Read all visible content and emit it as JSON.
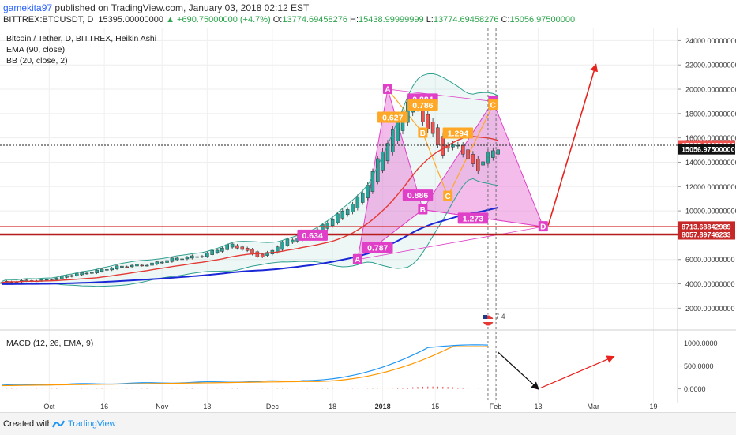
{
  "header": {
    "user": "gamekita97",
    "published_text": "published on TradingView.com, January 03, 2018 02:12 EST",
    "symbol": "BITTREX:BTCUSDT, D",
    "last": "15395.00000000",
    "change": "+690.75000000 (+4.7%)",
    "o_label": "O:",
    "o": "13774.69458276",
    "h_label": "H:",
    "h": "15438.99999999",
    "l_label": "L:",
    "l": "13774.69458276",
    "c_label": "C:",
    "c": "15056.97500000"
  },
  "legend": {
    "title": "Bitcoin / Tether, D, BITTREX, Heikin Ashi",
    "ema": "EMA (90, close)",
    "bb": "BB (20, close, 2)",
    "macd": "MACD (12, 26, EMA, 9)"
  },
  "colors": {
    "up": "#26a69a",
    "down": "#ef5350",
    "ema": "#1a27d6",
    "bb_basis": "#e53935",
    "bb_band": "#2e9e8e",
    "pattern": "#e040c8",
    "pattern_fill": "#e87ad6",
    "fib_orange": "#ffa726",
    "arrow": "#e8231e",
    "macd_line": "#2196f3",
    "signal_line": "#ff9800"
  },
  "chart_data": [
    {
      "type": "candlestick",
      "title": "Bitcoin / Tether, D, BITTREX, Heikin Ashi",
      "x_ticks": [
        "Oct",
        "16",
        "Nov",
        "13",
        "Dec",
        "18",
        "2018",
        "15",
        "Feb",
        "13",
        "Mar",
        "19"
      ],
      "y_ticks": [
        "2000.00000000",
        "4000.00000000",
        "6000.00000000",
        "8000.00000000",
        "10000.00000000",
        "12000.00000000",
        "14000.00000000",
        "16000.00000000",
        "18000.00000000",
        "20000.00000000",
        "22000.00000000",
        "24000.00000000"
      ],
      "ylim": [
        400,
        25000
      ],
      "price_labels": [
        {
          "value": "15395.00000000",
          "price": 15395,
          "color": "#ef5350"
        },
        {
          "value": "15056.97500000",
          "price": 15057,
          "color": "#111111"
        },
        {
          "value": "8713.68842989",
          "price": 8714,
          "color": "#c62828"
        },
        {
          "value": "8057.89746233",
          "price": 8058,
          "color": "#c62828"
        }
      ],
      "pattern_points": [
        {
          "label": "A",
          "day": 71,
          "price": 6000
        },
        {
          "label": "A",
          "day": 77,
          "price": 20000
        },
        {
          "label": "B",
          "day": 84,
          "price": 10100
        },
        {
          "label": "C",
          "day": 98,
          "price": 19000
        },
        {
          "label": "D",
          "day": 108,
          "price": 8700
        }
      ],
      "inner_points": [
        {
          "label": "B",
          "day": 84,
          "price": 16400
        },
        {
          "label": "C",
          "day": 89,
          "price": 11200
        },
        {
          "label": "C",
          "day": 98,
          "price": 18700
        }
      ],
      "ratios": [
        {
          "value": "0.884",
          "day": 84,
          "price": 19200,
          "color": "#e040c8"
        },
        {
          "value": "0.786",
          "day": 84,
          "price": 18700,
          "color": "#ffa726"
        },
        {
          "value": "0.627",
          "day": 78,
          "price": 17700,
          "color": "#ffa726"
        },
        {
          "value": "1.294",
          "day": 91,
          "price": 16400,
          "color": "#ffa726"
        },
        {
          "value": "0.886",
          "day": 83,
          "price": 11300,
          "color": "#e040c8"
        },
        {
          "value": "1.273",
          "day": 94,
          "price": 9400,
          "color": "#e040c8"
        },
        {
          "value": "0.634",
          "day": 62,
          "price": 8000,
          "color": "#e040c8"
        },
        {
          "value": "0.787",
          "day": 75,
          "price": 7000,
          "color": "#e040c8"
        }
      ],
      "event_label": "7 4"
    },
    {
      "type": "line",
      "title": "MACD (12, 26, EMA, 9)",
      "y_ticks": [
        "0.0000",
        "500.0000",
        "1000.0000"
      ],
      "ylim": [
        -300,
        1250
      ]
    }
  ]
}
